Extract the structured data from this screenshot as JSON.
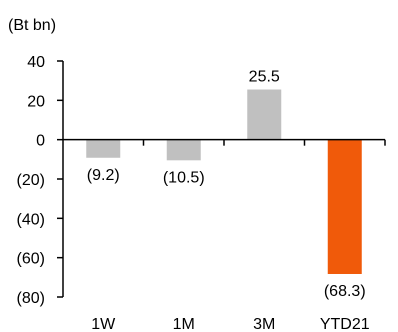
{
  "chart_data": {
    "type": "bar",
    "unit_label": "(Bt bn)",
    "categories": [
      "1W",
      "1M",
      "3M",
      "YTD21"
    ],
    "values": [
      -9.2,
      -10.5,
      25.5,
      -68.3
    ],
    "value_labels": [
      "(9.2)",
      "(10.5)",
      "25.5",
      "(68.3)"
    ],
    "bar_colors": [
      "#c0c0c0",
      "#c0c0c0",
      "#c0c0c0",
      "#f05a0a"
    ],
    "ylim": [
      -80,
      40
    ],
    "yticks": [
      40,
      20,
      0,
      -20,
      -40,
      -60,
      -80
    ],
    "ytick_labels": [
      "40",
      "20",
      "0",
      "(20)",
      "(40)",
      "(60)",
      "(80)"
    ],
    "grid": false,
    "legend": "none"
  }
}
